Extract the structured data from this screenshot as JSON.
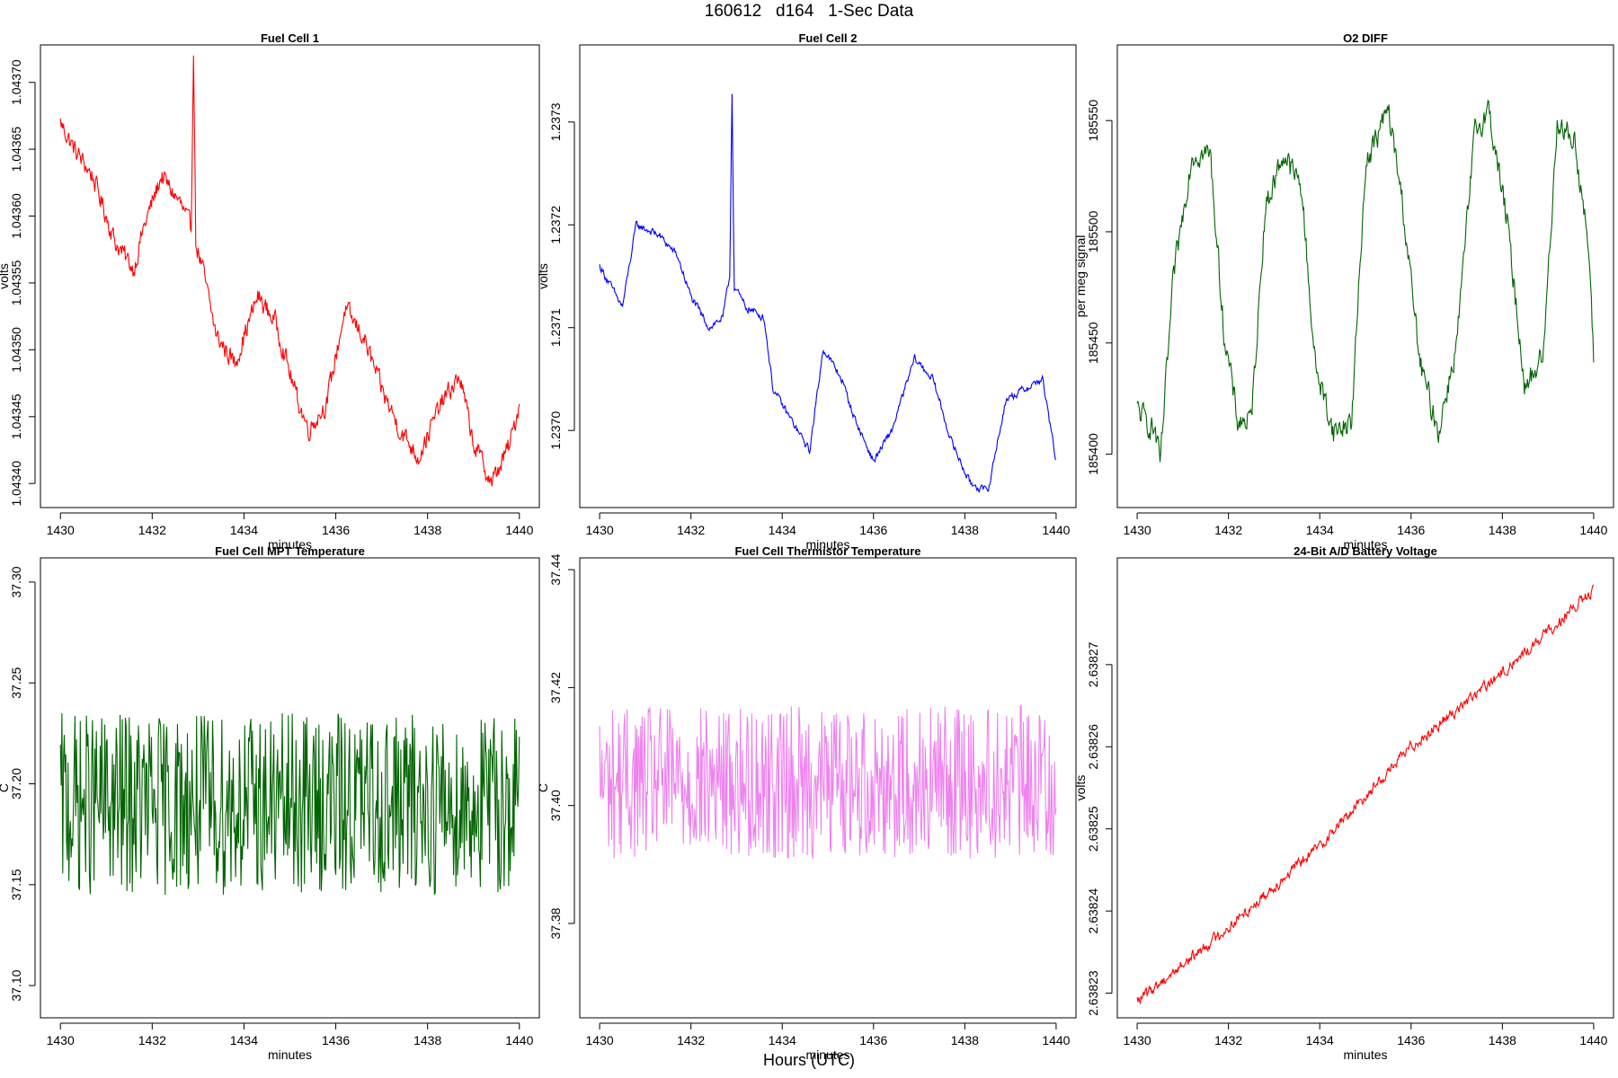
{
  "page": {
    "title": "160612   d164   1-Sec Data",
    "xlabel": "Hours (UTC)"
  },
  "chart_data": [
    {
      "type": "line",
      "title": "Fuel Cell 1",
      "xlabel": "minutes",
      "ylabel": "volts",
      "color": "#ff0000",
      "xlim": [
        1430,
        1440
      ],
      "ylim": [
        1.043382,
        1.043728
      ],
      "x_ticks": [
        1430,
        1432,
        1434,
        1436,
        1438,
        1440
      ],
      "x_tick_labels": [
        "1430",
        "1432",
        "1434",
        "1436",
        "1438",
        "1440"
      ],
      "y_ticks": [
        1.0434,
        1.04345,
        1.0435,
        1.04355,
        1.0436,
        1.04365,
        1.0437
      ],
      "y_tick_labels": [
        "1.04340",
        "1.04345",
        "1.04350",
        "1.04355",
        "1.04360",
        "1.04365",
        "1.04370"
      ],
      "noise": 1.2e-05,
      "series": [
        {
          "x": [
            1430,
            1430.3,
            1430.7,
            1431.2,
            1431.6,
            1431.8,
            1432.2,
            1432.6,
            1432.85,
            1432.9,
            1432.95,
            1433.1,
            1433.4,
            1433.8,
            1434.3,
            1434.7,
            1435.1,
            1435.4,
            1435.8,
            1436.2,
            1436.6,
            1437.0,
            1437.4,
            1437.8,
            1438.3,
            1438.7,
            1439.0,
            1439.4,
            1439.8,
            1440
          ],
          "y": [
            1.04367,
            1.04365,
            1.04363,
            1.04358,
            1.04356,
            1.04359,
            1.04363,
            1.04361,
            1.04359,
            1.04373,
            1.04358,
            1.04356,
            1.04351,
            1.04349,
            1.04354,
            1.04352,
            1.04347,
            1.04344,
            1.04346,
            1.04353,
            1.04351,
            1.04347,
            1.04344,
            1.04342,
            1.04346,
            1.04348,
            1.04343,
            1.0434,
            1.04343,
            1.04346
          ]
        }
      ]
    },
    {
      "type": "line",
      "title": "Fuel Cell 2",
      "xlabel": "minutes",
      "ylabel": "volts",
      "color": "#0000ff",
      "xlim": [
        1430,
        1440
      ],
      "ylim": [
        1.236925,
        1.237375
      ],
      "x_ticks": [
        1430,
        1432,
        1434,
        1436,
        1438,
        1440
      ],
      "x_tick_labels": [
        "1430",
        "1432",
        "1434",
        "1436",
        "1438",
        "1440"
      ],
      "y_ticks": [
        1.237,
        1.2371,
        1.2372,
        1.2373
      ],
      "y_tick_labels": [
        "1.2370",
        "1.2371",
        "1.2372",
        "1.2373"
      ],
      "noise": 6e-06,
      "series": [
        {
          "x": [
            1430,
            1430.5,
            1430.8,
            1431.3,
            1431.7,
            1432.0,
            1432.4,
            1432.7,
            1432.85,
            1432.9,
            1432.95,
            1433.2,
            1433.6,
            1433.8,
            1434.2,
            1434.6,
            1434.9,
            1435.3,
            1435.6,
            1436.0,
            1436.4,
            1436.9,
            1437.3,
            1437.7,
            1438.1,
            1438.5,
            1438.9,
            1439.3,
            1439.7,
            1440
          ],
          "y": [
            1.23716,
            1.23712,
            1.2372,
            1.23719,
            1.23717,
            1.23713,
            1.2371,
            1.23711,
            1.23715,
            1.23733,
            1.23714,
            1.23712,
            1.23711,
            1.23704,
            1.23701,
            1.23698,
            1.23708,
            1.23705,
            1.23701,
            1.23697,
            1.237,
            1.23707,
            1.23705,
            1.23699,
            1.23695,
            1.23694,
            1.23703,
            1.23704,
            1.23705,
            1.23697
          ]
        }
      ]
    },
    {
      "type": "line",
      "title": "O2 DIFF",
      "xlabel": "minutes",
      "ylabel": "per meg signal",
      "color": "#006400",
      "xlim": [
        1430,
        1440
      ],
      "ylim": [
        185376,
        185584
      ],
      "x_ticks": [
        1430,
        1432,
        1434,
        1436,
        1438,
        1440
      ],
      "x_tick_labels": [
        "1430",
        "1432",
        "1434",
        "1436",
        "1438",
        "1440"
      ],
      "y_ticks": [
        185400,
        185450,
        185500,
        185550
      ],
      "y_tick_labels": [
        "185400",
        "185450",
        "185500",
        "185550"
      ],
      "noise": 9,
      "series": [
        {
          "x": [
            1430,
            1430.4,
            1430.5,
            1430.8,
            1431.2,
            1431.6,
            1431.9,
            1432.2,
            1432.5,
            1432.8,
            1433.2,
            1433.6,
            1433.9,
            1434.3,
            1434.7,
            1435.0,
            1435.5,
            1435.8,
            1436.2,
            1436.6,
            1437.0,
            1437.4,
            1437.7,
            1438.1,
            1438.5,
            1438.9,
            1439.2,
            1439.6,
            1439.9,
            1440
          ],
          "y": [
            185420,
            185410,
            185395,
            185480,
            185535,
            185535,
            185455,
            185415,
            185415,
            185510,
            185535,
            185520,
            185440,
            185410,
            185415,
            185530,
            185555,
            185515,
            185440,
            185410,
            185450,
            185545,
            185555,
            185505,
            185430,
            185445,
            185550,
            185540,
            185490,
            185440
          ]
        }
      ]
    },
    {
      "type": "line",
      "title": "Fuel Cell MPT Temperature",
      "xlabel": "minutes",
      "ylabel": "C",
      "color": "#006400",
      "xlim": [
        1430,
        1440
      ],
      "ylim": [
        37.084,
        37.312
      ],
      "x_ticks": [
        1430,
        1432,
        1434,
        1436,
        1438,
        1440
      ],
      "x_tick_labels": [
        "1430",
        "1432",
        "1434",
        "1436",
        "1438",
        "1440"
      ],
      "y_ticks": [
        37.1,
        37.15,
        37.2,
        37.25,
        37.3
      ],
      "y_tick_labels": [
        "37.10",
        "37.15",
        "37.20",
        "37.25",
        "37.30"
      ],
      "noise": 0.045,
      "series": [
        {
          "x": [
            1430,
            1440
          ],
          "y": [
            37.19,
            37.19
          ]
        }
      ]
    },
    {
      "type": "line",
      "title": "Fuel Cell Thermistor Temperature",
      "xlabel": "minutes",
      "ylabel": "C",
      "color": "#ee82ee",
      "xlim": [
        1430,
        1440
      ],
      "ylim": [
        37.364,
        37.442
      ],
      "x_ticks": [
        1430,
        1432,
        1434,
        1436,
        1438,
        1440
      ],
      "x_tick_labels": [
        "1430",
        "1432",
        "1434",
        "1436",
        "1438",
        "1440"
      ],
      "y_ticks": [
        37.38,
        37.4,
        37.42,
        37.44
      ],
      "y_tick_labels": [
        "37.38",
        "37.40",
        "37.42",
        "37.44"
      ],
      "noise": 0.013,
      "series": [
        {
          "x": [
            1430,
            1440
          ],
          "y": [
            37.404,
            37.404
          ]
        }
      ]
    },
    {
      "type": "line",
      "title": "24-Bit A/D Battery Voltage",
      "xlabel": "minutes",
      "ylabel": "volts",
      "color": "#ff0000",
      "xlim": [
        1430,
        1440
      ],
      "ylim": [
        2.638227,
        2.638283
      ],
      "x_ticks": [
        1430,
        1432,
        1434,
        1436,
        1438,
        1440
      ],
      "x_tick_labels": [
        "1430",
        "1432",
        "1434",
        "1436",
        "1438",
        "1440"
      ],
      "y_ticks": [
        2.63823,
        2.63824,
        2.63825,
        2.63826,
        2.63827
      ],
      "y_tick_labels": [
        "2.63823",
        "2.63824",
        "2.63825",
        "2.63826",
        "2.63827"
      ],
      "noise": 1.1e-06,
      "series": [
        {
          "x": [
            1430,
            1432,
            1434,
            1436,
            1438,
            1440
          ],
          "y": [
            2.638229,
            2.638238,
            2.638248,
            2.63826,
            2.638269,
            2.638279
          ]
        }
      ]
    }
  ]
}
